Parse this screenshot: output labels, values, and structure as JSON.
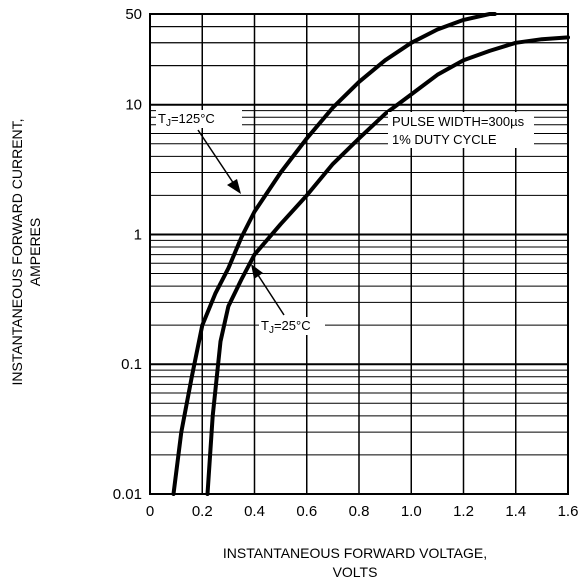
{
  "chart_data": {
    "type": "line",
    "xlabel": [
      "INSTANTANEOUS FORWARD VOLTAGE,",
      "VOLTS"
    ],
    "ylabel": [
      "INSTANTANEOUS FORWARD CURRENT,",
      "AMPERES"
    ],
    "xlim": [
      0,
      1.6
    ],
    "ylim": [
      0.01,
      50
    ],
    "yscale": "log",
    "grid": true,
    "x_ticks": [
      "0",
      "0.2",
      "0.4",
      "0.6",
      "0.8",
      "1.0",
      "1.2",
      "1.4",
      "1.6"
    ],
    "y_ticks": [
      {
        "value": 0.01,
        "label": "0.01"
      },
      {
        "value": 0.1,
        "label": "0.1"
      },
      {
        "value": 1,
        "label": "1"
      },
      {
        "value": 10,
        "label": "10"
      },
      {
        "value": 50,
        "label": "50"
      }
    ],
    "annotations": {
      "pulse_line1": "PULSE WIDTH=300µs",
      "pulse_line2": "1% DUTY CYCLE",
      "t125_prefix": "T",
      "t125_sub": "J",
      "t125_rest": "=125°C",
      "t25_prefix": "T",
      "t25_sub": "J",
      "t25_rest": "=25°C"
    },
    "series": [
      {
        "name": "TJ=125°C",
        "x": [
          0.09,
          0.12,
          0.16,
          0.2,
          0.25,
          0.3,
          0.35,
          0.4,
          0.5,
          0.6,
          0.7,
          0.8,
          0.9,
          1.0,
          1.1,
          1.2,
          1.3,
          1.32
        ],
        "y": [
          0.01,
          0.03,
          0.08,
          0.2,
          0.35,
          0.55,
          0.95,
          1.5,
          3.0,
          5.5,
          9.5,
          15,
          22,
          30,
          38,
          45,
          50,
          50
        ]
      },
      {
        "name": "TJ=25°C",
        "x": [
          0.22,
          0.24,
          0.27,
          0.3,
          0.35,
          0.4,
          0.5,
          0.6,
          0.7,
          0.8,
          0.9,
          1.0,
          1.1,
          1.2,
          1.3,
          1.4,
          1.5,
          1.6
        ],
        "y": [
          0.01,
          0.04,
          0.15,
          0.28,
          0.45,
          0.7,
          1.2,
          2.0,
          3.5,
          5.5,
          8.5,
          12,
          17,
          22,
          26,
          30,
          32,
          33
        ]
      }
    ]
  }
}
